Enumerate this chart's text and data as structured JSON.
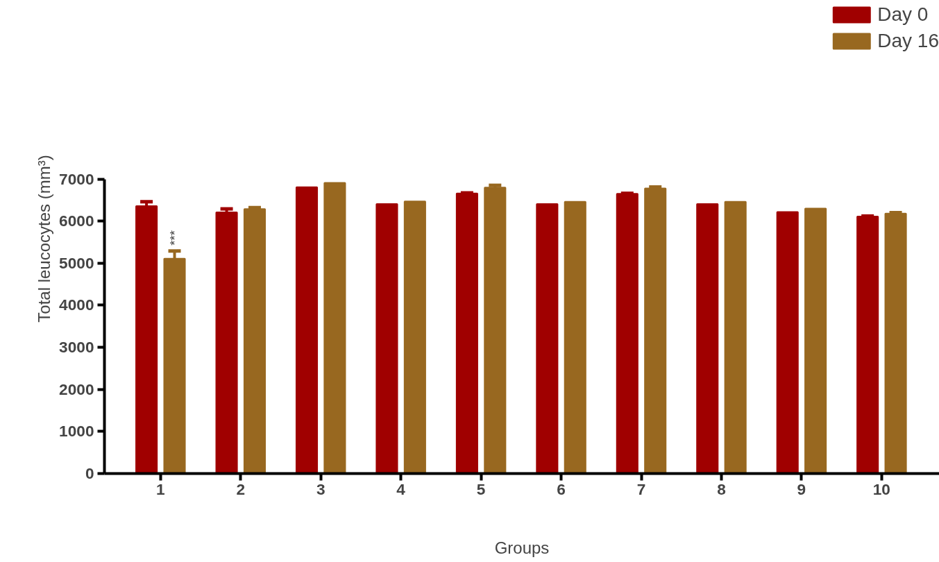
{
  "chart_data": {
    "type": "bar",
    "xlabel": "Groups",
    "ylabel": "Total leucocytes (mm³)",
    "categories": [
      "1",
      "2",
      "3",
      "4",
      "5",
      "6",
      "7",
      "8",
      "9",
      "10"
    ],
    "series": [
      {
        "name": "Day 0",
        "color": "#a00000",
        "values": [
          6350,
          6200,
          6800,
          6400,
          6650,
          6400,
          6640,
          6400,
          6210,
          6100
        ],
        "errors": [
          110,
          90,
          null,
          null,
          20,
          null,
          20,
          null,
          null,
          20
        ]
      },
      {
        "name": "Day 16",
        "color": "#986820",
        "values": [
          5100,
          6280,
          6900,
          6460,
          6790,
          6450,
          6770,
          6450,
          6290,
          6170
        ],
        "errors": [
          190,
          40,
          null,
          null,
          60,
          null,
          40,
          null,
          null,
          30
        ]
      }
    ],
    "annotations": [
      "***"
    ],
    "ylim": [
      0,
      7000
    ],
    "yticks": [
      0,
      1000,
      2000,
      3000,
      4000,
      5000,
      6000,
      7000
    ],
    "grid": false,
    "legend": "top right"
  }
}
